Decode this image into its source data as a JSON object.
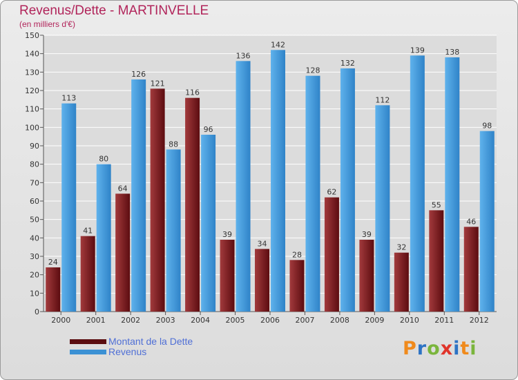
{
  "header": {
    "title": "Revenus/Dette - MARTINVELLE",
    "subtitle": "(en milliers d'€)"
  },
  "colors": {
    "dette": "#7a1f22",
    "revenus": "#4aa1e0"
  },
  "legend": [
    {
      "label": "Montant de la Dette",
      "color": "#7a1f22"
    },
    {
      "label": "Revenus",
      "color": "#4aa1e0"
    }
  ],
  "logo": {
    "text": "Proxiti",
    "letter_colors": [
      "#f08a1c",
      "#2d73c4",
      "#7ab53c",
      "#e0342a",
      "#2d73c4",
      "#f08a1c",
      "#7ab53c"
    ]
  },
  "chart_data": {
    "type": "bar",
    "categories": [
      "2000",
      "2001",
      "2002",
      "2003",
      "2004",
      "2005",
      "2006",
      "2007",
      "2008",
      "2009",
      "2010",
      "2011",
      "2012"
    ],
    "series": [
      {
        "name": "Montant de la Dette",
        "values": [
          24,
          41,
          64,
          121,
          116,
          39,
          34,
          28,
          62,
          39,
          32,
          55,
          46
        ]
      },
      {
        "name": "Revenus",
        "values": [
          113,
          80,
          126,
          88,
          96,
          136,
          142,
          128,
          132,
          112,
          139,
          138,
          98
        ]
      }
    ],
    "title": "Revenus/Dette - MARTINVELLE",
    "subtitle": "(en milliers d'€)",
    "xlabel": "",
    "ylabel": "",
    "ylim": [
      0,
      150
    ],
    "yticks": [
      0,
      10,
      20,
      30,
      40,
      50,
      60,
      70,
      80,
      90,
      100,
      110,
      120,
      130,
      140,
      150
    ],
    "grid": true,
    "legend_position": "bottom-left"
  }
}
